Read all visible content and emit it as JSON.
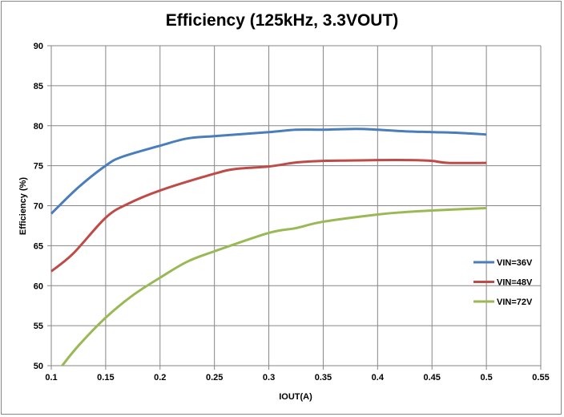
{
  "chart_data": {
    "type": "line",
    "title": "Efficiency (125kHz, 3.3VOUT)",
    "xlabel": "IOUT(A)",
    "ylabel": "Efficiency (%)",
    "xlim": [
      0.1,
      0.55
    ],
    "ylim": [
      50,
      90
    ],
    "xticks": [
      "0.1",
      "0.15",
      "0.2",
      "0.25",
      "0.3",
      "0.35",
      "0.4",
      "0.45",
      "0.5",
      "0.55"
    ],
    "yticks": [
      "50",
      "55",
      "60",
      "65",
      "70",
      "75",
      "80",
      "85",
      "90"
    ],
    "grid": true,
    "legend": "right",
    "series": [
      {
        "name": "VIN=36V",
        "color": "#4a7ebb",
        "x": [
          0.1,
          0.125,
          0.15,
          0.165,
          0.2,
          0.225,
          0.25,
          0.3,
          0.325,
          0.35,
          0.38,
          0.4,
          0.425,
          0.45,
          0.475,
          0.5
        ],
        "y": [
          69,
          72.3,
          75,
          76.1,
          77.5,
          78.4,
          78.7,
          79.2,
          79.5,
          79.5,
          79.6,
          79.5,
          79.3,
          79.2,
          79.1,
          78.9
        ]
      },
      {
        "name": "VIN=48V",
        "color": "#be4b48",
        "x": [
          0.1,
          0.12,
          0.15,
          0.17,
          0.2,
          0.25,
          0.27,
          0.3,
          0.325,
          0.35,
          0.375,
          0.4,
          0.43,
          0.45,
          0.465,
          0.5
        ],
        "y": [
          61.8,
          64,
          68.5,
          70.2,
          71.9,
          74,
          74.6,
          74.9,
          75.4,
          75.6,
          75.65,
          75.7,
          75.7,
          75.6,
          75.35,
          75.35
        ]
      },
      {
        "name": "VIN=72V",
        "color": "#98b954",
        "x": [
          0.11,
          0.125,
          0.15,
          0.175,
          0.2,
          0.225,
          0.25,
          0.3,
          0.325,
          0.35,
          0.4,
          0.425,
          0.45,
          0.5
        ],
        "y": [
          50,
          52.5,
          56,
          58.8,
          61,
          63,
          64.3,
          66.6,
          67.2,
          68,
          68.9,
          69.2,
          69.4,
          69.7
        ]
      }
    ]
  }
}
